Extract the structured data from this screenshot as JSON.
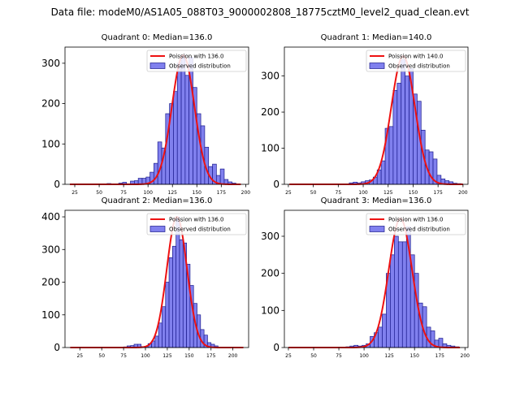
{
  "suptitle": "Data file: modeM0/AS1A05_088T03_9000002808_18775cztM0_level2_quad_clean.evt",
  "colors": {
    "hist_fill": "#8080ee",
    "hist_edge": "#1a1a8c",
    "poisson_line": "#ee1111"
  },
  "chart_data": [
    {
      "type": "bar",
      "title": "Quadrant 0: Median=136.0",
      "median": 136,
      "xlim": [
        15,
        203
      ],
      "ylim": [
        0,
        340
      ],
      "xticks": [
        25,
        50,
        75,
        100,
        125,
        150,
        175,
        200
      ],
      "yticks": [
        0,
        100,
        200,
        300
      ],
      "bin_width": 4,
      "bins": [
        [
          58,
          2
        ],
        [
          70,
          3
        ],
        [
          74,
          5
        ],
        [
          82,
          8
        ],
        [
          86,
          9
        ],
        [
          90,
          15
        ],
        [
          94,
          15
        ],
        [
          98,
          18
        ],
        [
          102,
          30
        ],
        [
          106,
          52
        ],
        [
          110,
          105
        ],
        [
          114,
          90
        ],
        [
          118,
          175
        ],
        [
          122,
          200
        ],
        [
          126,
          230
        ],
        [
          130,
          300
        ],
        [
          134,
          320
        ],
        [
          138,
          270
        ],
        [
          142,
          315
        ],
        [
          146,
          240
        ],
        [
          150,
          175
        ],
        [
          154,
          145
        ],
        [
          158,
          92
        ],
        [
          162,
          44
        ],
        [
          166,
          50
        ],
        [
          170,
          22
        ],
        [
          174,
          38
        ],
        [
          178,
          12
        ],
        [
          182,
          6
        ],
        [
          186,
          3
        ]
      ],
      "legend": [
        {
          "label": "Poission with 136.0",
          "kind": "line"
        },
        {
          "label": "Observed distribution",
          "kind": "patch"
        }
      ],
      "curve": {
        "label": "Poission with 136.0",
        "mean": 136,
        "peak": 320,
        "sigma": 11.5,
        "xrange": [
          20,
          195
        ]
      }
    },
    {
      "type": "bar",
      "title": "Quadrant 1: Median=140.0",
      "median": 140,
      "xlim": [
        21,
        205
      ],
      "ylim": [
        0,
        380
      ],
      "xticks": [
        25,
        50,
        75,
        100,
        125,
        150,
        175,
        200
      ],
      "yticks": [
        0,
        100,
        200,
        300
      ],
      "bin_width": 4,
      "bins": [
        [
          86,
          4
        ],
        [
          90,
          6
        ],
        [
          94,
          4
        ],
        [
          98,
          7
        ],
        [
          102,
          10
        ],
        [
          106,
          12
        ],
        [
          110,
          20
        ],
        [
          114,
          40
        ],
        [
          118,
          65
        ],
        [
          122,
          155
        ],
        [
          126,
          160
        ],
        [
          130,
          260
        ],
        [
          134,
          280
        ],
        [
          138,
          345
        ],
        [
          142,
          300
        ],
        [
          146,
          320
        ],
        [
          150,
          250
        ],
        [
          154,
          230
        ],
        [
          158,
          150
        ],
        [
          162,
          95
        ],
        [
          166,
          90
        ],
        [
          170,
          70
        ],
        [
          174,
          25
        ],
        [
          178,
          15
        ],
        [
          182,
          10
        ],
        [
          186,
          7
        ],
        [
          190,
          3
        ],
        [
          194,
          2
        ]
      ],
      "legend": [
        {
          "label": "Poission with 140.0",
          "kind": "line"
        },
        {
          "label": "Observed distribution",
          "kind": "patch"
        }
      ],
      "curve": {
        "label": "Poission with 140.0",
        "mean": 140,
        "peak": 355,
        "sigma": 11.8,
        "xrange": [
          26,
          200
        ]
      }
    },
    {
      "type": "bar",
      "title": "Quadrant 2: Median=136.0",
      "median": 136,
      "xlim": [
        8,
        218
      ],
      "ylim": [
        0,
        420
      ],
      "xticks": [
        25,
        50,
        75,
        100,
        125,
        150,
        175,
        200
      ],
      "yticks": [
        0,
        100,
        200,
        300,
        400
      ],
      "bin_width": 4,
      "bins": [
        [
          75,
          2
        ],
        [
          79,
          5
        ],
        [
          83,
          6
        ],
        [
          87,
          10
        ],
        [
          91,
          10
        ],
        [
          95,
          3
        ],
        [
          99,
          4
        ],
        [
          103,
          12
        ],
        [
          107,
          20
        ],
        [
          111,
          35
        ],
        [
          115,
          75
        ],
        [
          119,
          125
        ],
        [
          123,
          200
        ],
        [
          127,
          275
        ],
        [
          131,
          310
        ],
        [
          135,
          400
        ],
        [
          139,
          330
        ],
        [
          143,
          320
        ],
        [
          147,
          255
        ],
        [
          151,
          190
        ],
        [
          155,
          135
        ],
        [
          159,
          100
        ],
        [
          163,
          55
        ],
        [
          167,
          38
        ],
        [
          171,
          15
        ],
        [
          175,
          10
        ],
        [
          179,
          5
        ]
      ],
      "legend": [
        {
          "label": "Poission with 136.0",
          "kind": "line"
        },
        {
          "label": "Observed distribution",
          "kind": "patch"
        }
      ],
      "curve": {
        "label": "Poission with 136.0",
        "mean": 136,
        "peak": 400,
        "sigma": 11.5,
        "xrange": [
          14,
          212
        ]
      }
    },
    {
      "type": "bar",
      "title": "Quadrant 3: Median=136.0",
      "median": 136,
      "xlim": [
        21,
        203
      ],
      "ylim": [
        0,
        370
      ],
      "xticks": [
        25,
        50,
        75,
        100,
        125,
        150,
        175,
        200
      ],
      "yticks": [
        0,
        100,
        200,
        300
      ],
      "bin_width": 4,
      "bins": [
        [
          82,
          2
        ],
        [
          86,
          4
        ],
        [
          90,
          6
        ],
        [
          94,
          4
        ],
        [
          98,
          6
        ],
        [
          102,
          10
        ],
        [
          106,
          30
        ],
        [
          110,
          40
        ],
        [
          114,
          55
        ],
        [
          118,
          90
        ],
        [
          122,
          200
        ],
        [
          126,
          250
        ],
        [
          130,
          300
        ],
        [
          134,
          285
        ],
        [
          138,
          285
        ],
        [
          142,
          325
        ],
        [
          146,
          250
        ],
        [
          150,
          200
        ],
        [
          154,
          120
        ],
        [
          158,
          110
        ],
        [
          162,
          55
        ],
        [
          166,
          45
        ],
        [
          170,
          20
        ],
        [
          174,
          25
        ],
        [
          178,
          10
        ],
        [
          182,
          6
        ],
        [
          186,
          4
        ],
        [
          190,
          2
        ]
      ],
      "legend": [
        {
          "label": "Poission with 136.0",
          "kind": "line"
        },
        {
          "label": "Observed distribution",
          "kind": "patch"
        }
      ],
      "curve": {
        "label": "Poission with 136.0",
        "mean": 136,
        "peak": 348,
        "sigma": 11.5,
        "xrange": [
          25,
          195
        ]
      }
    }
  ]
}
